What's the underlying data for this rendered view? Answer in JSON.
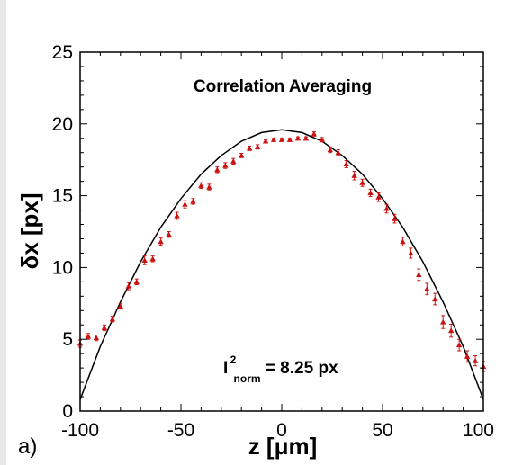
{
  "chart_data": {
    "type": "scatter",
    "panel_label": "a)",
    "title": "Correlation Averaging",
    "xlabel": "z [μm]",
    "ylabel": "δx [px]",
    "xlim": [
      -100,
      100
    ],
    "ylim": [
      0,
      25
    ],
    "x_ticks": [
      -100,
      -50,
      0,
      50,
      100
    ],
    "y_ticks": [
      0,
      5,
      10,
      15,
      20,
      25
    ],
    "grid": false,
    "annotation": {
      "main": "I",
      "superscript": "2",
      "subscript": "norm",
      "value": " = 8.25 px"
    },
    "colors": {
      "points": "#cc1111",
      "curve": "#000000",
      "axes": "#000000"
    },
    "curve": {
      "x": [
        -100,
        -90,
        -80,
        -70,
        -60,
        -50,
        -40,
        -30,
        -20,
        -10,
        0,
        10,
        20,
        30,
        40,
        50,
        60,
        70,
        80,
        90,
        100
      ],
      "y": [
        0.8,
        4.5,
        7.6,
        10.4,
        12.8,
        14.8,
        16.5,
        17.8,
        18.8,
        19.4,
        19.6,
        19.4,
        18.8,
        17.8,
        16.5,
        14.8,
        12.8,
        10.4,
        7.6,
        4.5,
        0.8
      ]
    },
    "series": [
      {
        "x": [
          -100,
          -96,
          -92,
          -88,
          -84,
          -80,
          -76,
          -72,
          -68,
          -64,
          -60,
          -56,
          -52,
          -48,
          -44,
          -40,
          -36,
          -32,
          -28,
          -24,
          -20,
          -16,
          -12,
          -8,
          -4,
          0,
          4,
          8,
          12,
          16,
          20,
          24,
          28,
          32,
          36,
          40,
          44,
          48,
          52,
          56,
          60,
          64,
          68,
          72,
          76,
          80,
          84,
          88,
          92,
          96,
          100
        ],
        "y": [
          4.7,
          5.2,
          5.1,
          5.8,
          6.4,
          7.3,
          8.7,
          9.0,
          10.5,
          10.6,
          11.8,
          12.3,
          13.6,
          14.4,
          14.6,
          15.7,
          15.6,
          16.8,
          17.1,
          17.4,
          17.8,
          18.3,
          18.4,
          18.8,
          18.9,
          18.9,
          18.9,
          19.0,
          19.0,
          19.3,
          18.9,
          18.2,
          18.0,
          17.2,
          16.4,
          15.9,
          15.2,
          14.9,
          14.1,
          13.4,
          11.8,
          11.0,
          9.5,
          8.5,
          7.8,
          6.2,
          5.6,
          4.6,
          3.8,
          3.5,
          3.1
        ],
        "err": [
          0.25,
          0.2,
          0.2,
          0.2,
          0.2,
          0.2,
          0.25,
          0.2,
          0.3,
          0.2,
          0.25,
          0.2,
          0.25,
          0.25,
          0.2,
          0.2,
          0.2,
          0.2,
          0.2,
          0.2,
          0.15,
          0.15,
          0.15,
          0.1,
          0.1,
          0.1,
          0.1,
          0.1,
          0.1,
          0.15,
          0.15,
          0.2,
          0.2,
          0.25,
          0.3,
          0.25,
          0.25,
          0.3,
          0.3,
          0.3,
          0.3,
          0.35,
          0.4,
          0.4,
          0.4,
          0.45,
          0.45,
          0.4,
          0.4,
          0.35,
          0.35
        ]
      }
    ]
  }
}
